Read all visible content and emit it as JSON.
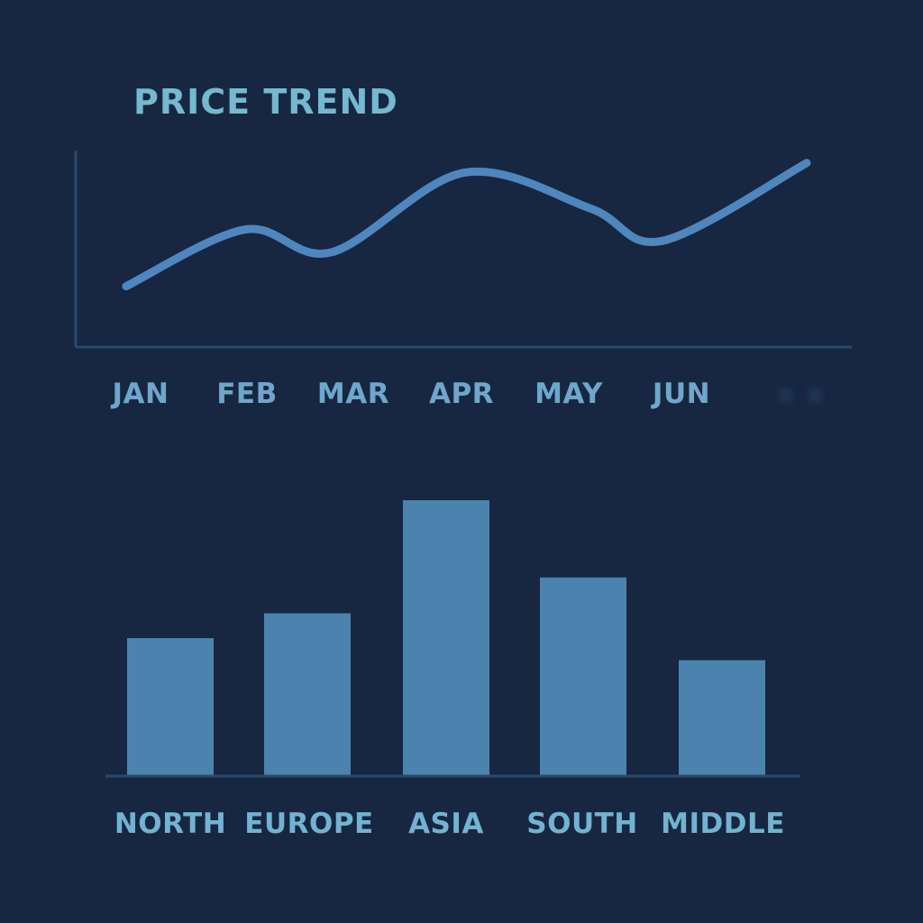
{
  "colors": {
    "background": "#172741",
    "line": "#4f86bd",
    "bar": "#4c83ae",
    "axis": "#2b4a6b",
    "title": "#75b8cf",
    "tick_label": "#6fa6cb",
    "bar_label": "#73b2d1",
    "faded_mark": "#1e3452"
  },
  "chart_data": [
    {
      "type": "line",
      "title": "PRICE TREND",
      "xlabel": "",
      "ylabel": "",
      "categories": [
        "JAN",
        "FEB",
        "MAR",
        "APR",
        "MAY",
        "JUN",
        ""
      ],
      "series": [
        {
          "values": [
            18,
            53,
            39,
            88,
            66,
            46,
            94
          ]
        }
      ],
      "ylim": [
        0,
        100
      ],
      "grid": false,
      "legend": "none"
    },
    {
      "type": "bar",
      "title": "",
      "xlabel": "",
      "ylabel": "",
      "categories": [
        "NORTH",
        "EUROPE",
        "ASIA",
        "SOUTH",
        "MIDDLE"
      ],
      "values": [
        50,
        59,
        100,
        72,
        42
      ],
      "ylim": [
        0,
        100
      ],
      "grid": false,
      "legend": "none"
    }
  ]
}
